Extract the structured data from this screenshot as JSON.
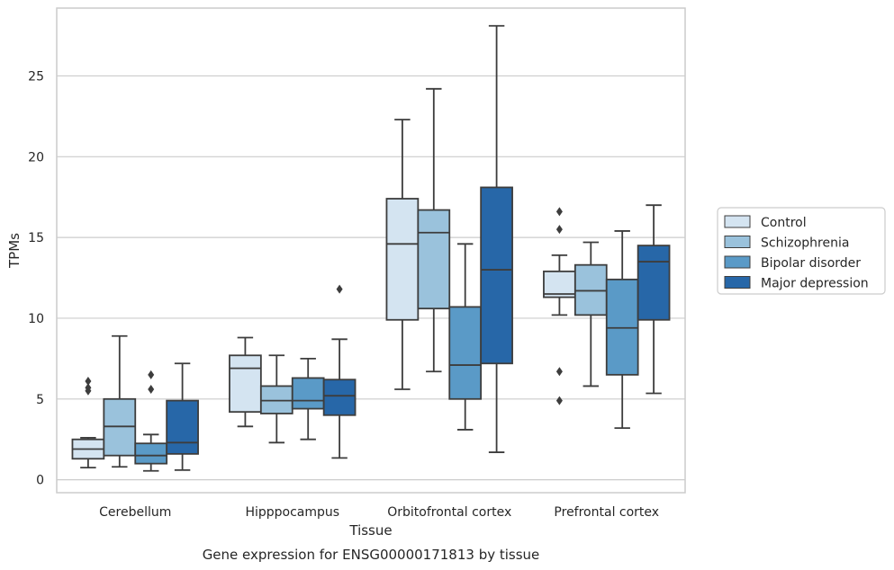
{
  "chart_data": {
    "type": "boxplot",
    "title": "",
    "caption": "Gene expression for ENSG00000171813 by tissue",
    "xlabel": "Tissue",
    "ylabel": "TPMs",
    "ylim": [
      -0.8,
      29.2
    ],
    "yticks": [
      0,
      5,
      10,
      15,
      20,
      25
    ],
    "grid": "horizontal",
    "legend_position": "right",
    "categories": [
      "Cerebellum",
      "Hipppocampus",
      "Orbitofrontal cortex",
      "Prefrontal cortex"
    ],
    "series": [
      {
        "name": "Control",
        "color": "#d4e4f1",
        "boxes": [
          {
            "whislo": 0.75,
            "q1": 1.3,
            "med": 1.9,
            "q3": 2.5,
            "whishi": 2.6,
            "fliers": [
              5.5,
              5.7,
              6.1
            ]
          },
          {
            "whislo": 3.3,
            "q1": 4.2,
            "med": 6.9,
            "q3": 7.7,
            "whishi": 8.8,
            "fliers": []
          },
          {
            "whislo": 5.6,
            "q1": 9.9,
            "med": 14.6,
            "q3": 17.4,
            "whishi": 22.3,
            "fliers": []
          },
          {
            "whislo": 10.2,
            "q1": 11.3,
            "med": 11.5,
            "q3": 12.9,
            "whishi": 13.9,
            "fliers": [
              4.9,
              6.7,
              15.5,
              16.6
            ]
          }
        ]
      },
      {
        "name": "Schizophrenia",
        "color": "#9ac2dc",
        "boxes": [
          {
            "whislo": 0.8,
            "q1": 1.5,
            "med": 3.3,
            "q3": 5.0,
            "whishi": 8.9,
            "fliers": []
          },
          {
            "whislo": 2.3,
            "q1": 4.1,
            "med": 4.9,
            "q3": 5.8,
            "whishi": 7.7,
            "fliers": []
          },
          {
            "whislo": 6.7,
            "q1": 10.6,
            "med": 15.3,
            "q3": 16.7,
            "whishi": 24.2,
            "fliers": []
          },
          {
            "whislo": 5.8,
            "q1": 10.2,
            "med": 11.7,
            "q3": 13.3,
            "whishi": 14.7,
            "fliers": []
          }
        ]
      },
      {
        "name": "Bipolar disorder",
        "color": "#5a9ac7",
        "boxes": [
          {
            "whislo": 0.55,
            "q1": 1.0,
            "med": 1.5,
            "q3": 2.25,
            "whishi": 2.8,
            "fliers": [
              5.6,
              6.5
            ]
          },
          {
            "whislo": 2.5,
            "q1": 4.4,
            "med": 4.9,
            "q3": 6.3,
            "whishi": 7.5,
            "fliers": []
          },
          {
            "whislo": 3.1,
            "q1": 5.0,
            "med": 7.1,
            "q3": 10.7,
            "whishi": 14.6,
            "fliers": []
          },
          {
            "whislo": 3.2,
            "q1": 6.5,
            "med": 9.4,
            "q3": 12.4,
            "whishi": 15.4,
            "fliers": []
          }
        ]
      },
      {
        "name": "Major depression",
        "color": "#2767a8",
        "boxes": [
          {
            "whislo": 0.6,
            "q1": 1.6,
            "med": 2.3,
            "q3": 4.9,
            "whishi": 7.2,
            "fliers": []
          },
          {
            "whislo": 1.35,
            "q1": 4.0,
            "med": 5.2,
            "q3": 6.2,
            "whishi": 8.7,
            "fliers": [
              11.8
            ]
          },
          {
            "whislo": 1.7,
            "q1": 7.2,
            "med": 13.0,
            "q3": 18.1,
            "whishi": 28.1,
            "fliers": []
          },
          {
            "whislo": 5.35,
            "q1": 9.9,
            "med": 13.5,
            "q3": 14.5,
            "whishi": 17.0,
            "fliers": []
          }
        ]
      }
    ]
  }
}
